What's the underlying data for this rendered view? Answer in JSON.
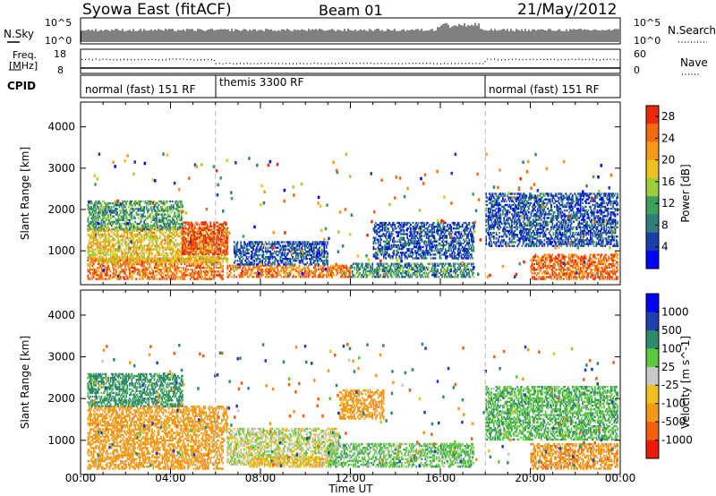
{
  "header": {
    "station": "Syowa East (fitACF)",
    "beam": "Beam 01",
    "date": "21/May/2012"
  },
  "top_panels": {
    "nsky_label": "N.Sky",
    "nsky_ticks": [
      "10^5",
      "10^0"
    ],
    "nsearch_label": "N.Search",
    "nsearch_ticks": [
      "10^5",
      "10^0"
    ],
    "freq_label_1": "Freq.",
    "freq_label_2": "[MHz]",
    "freq_ticks": [
      "18",
      "8"
    ],
    "nave_label": "Nave",
    "nave_ticks": [
      "60",
      "0"
    ],
    "cpid_label": "CPID",
    "cpid_segments": [
      {
        "label": "normal (fast) 151 RF",
        "start_hour": 0,
        "end_hour": 6
      },
      {
        "label": "themis 3300 RF",
        "start_hour": 6,
        "end_hour": 18
      },
      {
        "label": "normal (fast) 151 RF",
        "start_hour": 18,
        "end_hour": 24
      }
    ]
  },
  "colors": {
    "power_scale": [
      "#0000ff",
      "#1a3fa8",
      "#2f7f7f",
      "#3fa05a",
      "#9dcf3a",
      "#f0c020",
      "#f59a18",
      "#f26a10",
      "#ee2a0a"
    ],
    "velocity_scale": [
      "#0000ff",
      "#1f3fb0",
      "#2f8a6a",
      "#5ac83a",
      "#c8c8c8",
      "#f0c020",
      "#f29a18",
      "#f26010",
      "#ee1a0a"
    ]
  },
  "chart_data": [
    {
      "type": "heatmap",
      "title": "Power",
      "xlabel": "",
      "ylabel": "Slant Range [km]",
      "xlim": [
        0,
        24
      ],
      "ylim": [
        180,
        4600
      ],
      "x_ticks": [
        "00:00",
        "04:00",
        "08:00",
        "12:00",
        "16:00",
        "20:00",
        "00:00"
      ],
      "y_ticks": [
        1000,
        2000,
        3000,
        4000
      ],
      "colorbar_label": "Power [dB]",
      "colorbar_ticks": [
        4,
        8,
        12,
        16,
        20,
        24,
        28
      ],
      "colorbar_range": [
        0,
        30
      ],
      "mode_change_hours": [
        6,
        18
      ],
      "echo_regions": [
        {
          "t0": 0.3,
          "t1": 6.3,
          "r0": 300,
          "r1": 800,
          "value": 24
        },
        {
          "t0": 0.3,
          "t1": 6.5,
          "r0": 700,
          "r1": 1600,
          "value": 19
        },
        {
          "t0": 4.5,
          "t1": 6.5,
          "r0": 900,
          "r1": 1700,
          "value": 28
        },
        {
          "t0": 0.3,
          "t1": 4.5,
          "r0": 1500,
          "r1": 2200,
          "value": 11
        },
        {
          "t0": 6.5,
          "t1": 12.0,
          "r0": 350,
          "r1": 650,
          "value": 24
        },
        {
          "t0": 6.8,
          "t1": 11.0,
          "r0": 650,
          "r1": 1200,
          "value": 6
        },
        {
          "t0": 12.0,
          "t1": 17.5,
          "r0": 350,
          "r1": 700,
          "value": 10
        },
        {
          "t0": 13.0,
          "t1": 17.5,
          "r0": 800,
          "r1": 1700,
          "value": 6
        },
        {
          "t0": 18.0,
          "t1": 23.9,
          "r0": 1100,
          "r1": 2400,
          "value": 6
        },
        {
          "t0": 20.0,
          "t1": 23.9,
          "r0": 300,
          "r1": 900,
          "value": 25
        }
      ]
    },
    {
      "type": "heatmap",
      "title": "Velocity",
      "xlabel": "Time UT",
      "ylabel": "Slant Range [km]",
      "xlim": [
        0,
        24
      ],
      "ylim": [
        180,
        4600
      ],
      "x_ticks": [
        "00:00",
        "04:00",
        "08:00",
        "12:00",
        "16:00",
        "20:00",
        "00:00"
      ],
      "y_ticks": [
        1000,
        2000,
        3000,
        4000
      ],
      "colorbar_label": "Velocity [m s^-1]",
      "colorbar_ticks": [
        "1000",
        "500",
        "100",
        "25",
        "-25",
        "-100",
        "-500",
        "-1000"
      ],
      "mode_change_hours": [
        6,
        18
      ],
      "echo_regions": [
        {
          "t0": 0.3,
          "t1": 6.3,
          "r0": 300,
          "r1": 1200,
          "value": -200
        },
        {
          "t0": 0.3,
          "t1": 6.5,
          "r0": 1200,
          "r1": 1800,
          "value": -300
        },
        {
          "t0": 0.3,
          "t1": 4.5,
          "r0": 1800,
          "r1": 2600,
          "value": 150
        },
        {
          "t0": 6.5,
          "t1": 11.5,
          "r0": 400,
          "r1": 1300,
          "value": 0
        },
        {
          "t0": 7.5,
          "t1": 11.0,
          "r0": 350,
          "r1": 600,
          "value": -80
        },
        {
          "t0": 11.0,
          "t1": 17.5,
          "r0": 350,
          "r1": 900,
          "value": 60
        },
        {
          "t0": 11.5,
          "t1": 13.5,
          "r0": 1500,
          "r1": 2200,
          "value": -300
        },
        {
          "t0": 18.0,
          "t1": 23.9,
          "r0": 1000,
          "r1": 2300,
          "value": 80
        },
        {
          "t0": 20.0,
          "t1": 23.9,
          "r0": 300,
          "r1": 900,
          "value": -400
        }
      ]
    }
  ]
}
